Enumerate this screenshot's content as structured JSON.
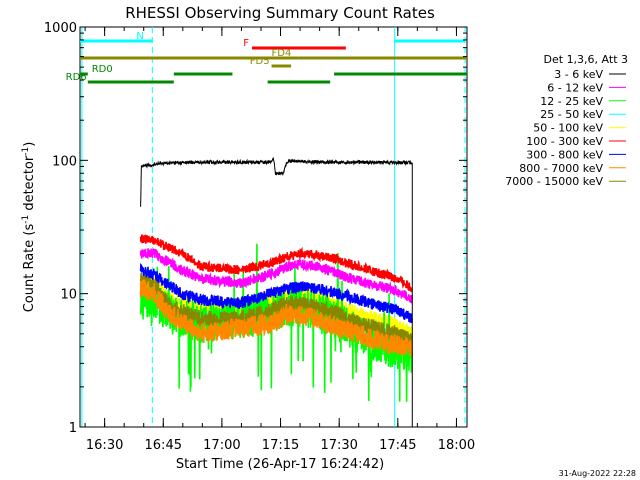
{
  "chart_data": {
    "type": "line",
    "title": "RHESSI Observing Summary Count Rates",
    "ylabel": "Count Rate (s",
    "ylabel_sup": "-1",
    "ylabel_tail": " detector",
    "ylabel_sup2": "-1",
    "ylabel_end": ")",
    "xlabel": "Start Time (26-Apr-17 16:24:42)",
    "y_scale": "log",
    "ylim": [
      1,
      1000
    ],
    "xlim_minutes": [
      -1.0,
      98.0
    ],
    "y_ticks": [
      {
        "value": 1,
        "label": "1"
      },
      {
        "value": 10,
        "label": "10"
      },
      {
        "value": 100,
        "label": "100"
      },
      {
        "value": 1000,
        "label": "1000"
      }
    ],
    "x_ticks": [
      {
        "minutes": 5.3,
        "label": "16:30"
      },
      {
        "minutes": 20.3,
        "label": "16:45"
      },
      {
        "minutes": 35.3,
        "label": "17:00"
      },
      {
        "minutes": 50.3,
        "label": "17:15"
      },
      {
        "minutes": 65.3,
        "label": "17:30"
      },
      {
        "minutes": 80.3,
        "label": "17:45"
      },
      {
        "minutes": 95.3,
        "label": "18:00"
      }
    ],
    "legend_title": "Det 1,3,6, Att 3",
    "legend_placement": "right",
    "series": [
      {
        "name": "3 - 6 keV",
        "color": "#000000",
        "points": [
          [
            14.5,
            45
          ],
          [
            14.7,
            90
          ],
          [
            20,
            95
          ],
          [
            30,
            97
          ],
          [
            40,
            97
          ],
          [
            48,
            97
          ],
          [
            48.5,
            103
          ],
          [
            49,
            80
          ],
          [
            51,
            80
          ],
          [
            52,
            99
          ],
          [
            60,
            97
          ],
          [
            70,
            97
          ],
          [
            80,
            96
          ],
          [
            83,
            96
          ],
          [
            84,
            96
          ]
        ]
      },
      {
        "name": "6 - 12 keV",
        "color": "#ff00ff",
        "points": [
          [
            14.5,
            20
          ],
          [
            18,
            20
          ],
          [
            25,
            15
          ],
          [
            30,
            13
          ],
          [
            40,
            12
          ],
          [
            48,
            14
          ],
          [
            52,
            16
          ],
          [
            56,
            16.5
          ],
          [
            60,
            16
          ],
          [
            65,
            14
          ],
          [
            70,
            12.5
          ],
          [
            80,
            10.5
          ],
          [
            84,
            9
          ]
        ]
      },
      {
        "name": "12 - 25 keV",
        "color": "#00ff00",
        "points": [
          [
            14.5,
            9
          ],
          [
            18,
            9
          ],
          [
            22,
            7
          ],
          [
            30,
            6
          ],
          [
            40,
            6.5
          ],
          [
            48,
            7
          ],
          [
            52,
            8
          ],
          [
            60,
            7.5
          ],
          [
            65,
            6
          ],
          [
            70,
            5
          ],
          [
            78,
            4
          ],
          [
            84,
            3.5
          ]
        ]
      },
      {
        "name": "25 - 50 keV",
        "color": "#00ffff",
        "points": [
          [
            14.5,
            11
          ],
          [
            18,
            11
          ],
          [
            22,
            8
          ],
          [
            30,
            7
          ],
          [
            40,
            7
          ],
          [
            48,
            8
          ],
          [
            52,
            9
          ],
          [
            60,
            8.5
          ],
          [
            65,
            7
          ],
          [
            70,
            6
          ],
          [
            78,
            5
          ],
          [
            84,
            4.5
          ]
        ]
      },
      {
        "name": "50 - 100 keV",
        "color": "#ffff00",
        "points": [
          [
            14.5,
            12
          ],
          [
            18,
            12
          ],
          [
            22,
            9
          ],
          [
            30,
            8
          ],
          [
            40,
            8
          ],
          [
            48,
            9
          ],
          [
            52,
            10
          ],
          [
            60,
            9.5
          ],
          [
            65,
            8
          ],
          [
            70,
            7
          ],
          [
            78,
            6
          ],
          [
            84,
            5
          ]
        ]
      },
      {
        "name": "100 - 300 keV",
        "color": "#ff0000",
        "points": [
          [
            14.5,
            26
          ],
          [
            18,
            25
          ],
          [
            25,
            20
          ],
          [
            30,
            16
          ],
          [
            40,
            15
          ],
          [
            48,
            17
          ],
          [
            52,
            19
          ],
          [
            56,
            20
          ],
          [
            60,
            19.5
          ],
          [
            65,
            18
          ],
          [
            70,
            16
          ],
          [
            80,
            13
          ],
          [
            84,
            11
          ]
        ]
      },
      {
        "name": "300 - 800 keV",
        "color": "#0000ff",
        "points": [
          [
            14.5,
            15
          ],
          [
            18,
            14
          ],
          [
            25,
            10
          ],
          [
            30,
            9
          ],
          [
            40,
            8.5
          ],
          [
            48,
            10
          ],
          [
            52,
            11
          ],
          [
            56,
            11.2
          ],
          [
            60,
            11
          ],
          [
            65,
            10
          ],
          [
            70,
            9
          ],
          [
            80,
            7.5
          ],
          [
            84,
            6.5
          ]
        ]
      },
      {
        "name": "800 - 7000 keV",
        "color": "#ff8800",
        "points": [
          [
            14.5,
            11
          ],
          [
            18,
            10
          ],
          [
            22,
            7
          ],
          [
            30,
            5
          ],
          [
            40,
            5.5
          ],
          [
            48,
            6
          ],
          [
            52,
            7
          ],
          [
            60,
            6.5
          ],
          [
            65,
            5.5
          ],
          [
            70,
            5
          ],
          [
            78,
            4.2
          ],
          [
            84,
            4
          ]
        ]
      },
      {
        "name": "7000 - 15000 keV",
        "color": "#888800",
        "points": [
          [
            14.5,
            13
          ],
          [
            18,
            12
          ],
          [
            22,
            8
          ],
          [
            30,
            6.5
          ],
          [
            40,
            6.5
          ],
          [
            48,
            7.5
          ],
          [
            52,
            8.5
          ],
          [
            60,
            8
          ],
          [
            65,
            7
          ],
          [
            70,
            6
          ],
          [
            80,
            5
          ],
          [
            84,
            4.5
          ]
        ]
      }
    ],
    "state_bars": [
      {
        "label": "N",
        "color": "#00ffff",
        "level": 0,
        "segments": [
          [
            -1,
            17.5
          ],
          [
            79.5,
            97.5
          ]
        ]
      },
      {
        "label": "F",
        "color": "#ff0000",
        "level": 1,
        "segments": [
          [
            43,
            67
          ]
        ]
      },
      {
        "label": "FD4",
        "color": "#888800",
        "level": 2,
        "segments": [
          [
            -1,
            55
          ],
          [
            55,
            98
          ]
        ]
      },
      {
        "label": "FD5",
        "color": "#888800",
        "level": 3,
        "segments": [
          [
            48,
            53
          ]
        ]
      },
      {
        "label": "RD0",
        "color": "#008800",
        "level": 4,
        "segments": [
          [
            -1,
            1
          ],
          [
            23,
            38
          ],
          [
            64,
            98
          ]
        ]
      },
      {
        "label": "RD6",
        "color": "#008800",
        "level": 5,
        "segments": [
          [
            1,
            23
          ],
          [
            47,
            63
          ]
        ]
      }
    ],
    "vlines": [
      {
        "minutes": -0.5,
        "style": "solid",
        "color": "#00ffff"
      },
      {
        "minutes": 17.5,
        "style": "dashed",
        "color": "#00ffff"
      },
      {
        "minutes": 79.5,
        "style": "solid",
        "color": "#00ffff"
      },
      {
        "minutes": 97.5,
        "style": "dashed",
        "color": "#00ffff"
      }
    ]
  },
  "footer": {
    "date_stamp": "31-Aug-2022 22:28"
  }
}
